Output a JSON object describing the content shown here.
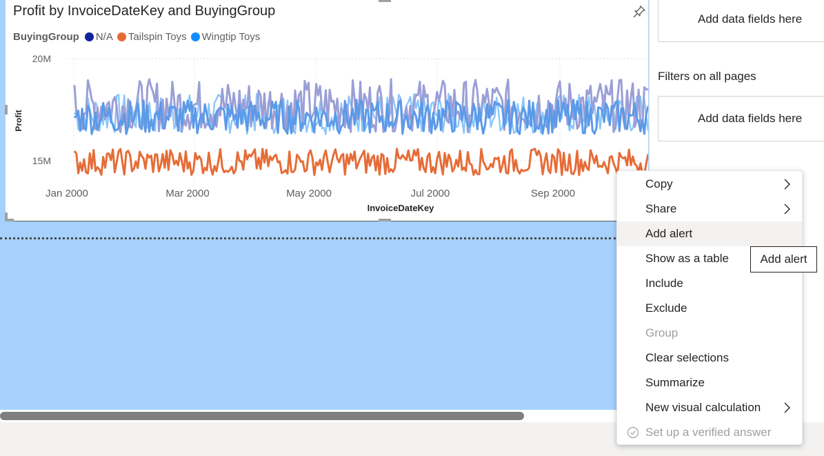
{
  "visual": {
    "title": "Profit by InvoiceDateKey and BuyingGroup",
    "legend_title": "BuyingGroup",
    "pin_icon": "pin-icon"
  },
  "chart_data": {
    "type": "line",
    "title": "Profit by InvoiceDateKey and BuyingGroup",
    "xlabel": "InvoiceDateKey",
    "ylabel": "Profit",
    "x_ticks": [
      "Jan 2000",
      "Mar 2000",
      "May 2000",
      "Jul 2000",
      "Sep 2000"
    ],
    "y_ticks": [
      "15M",
      "20M"
    ],
    "ylim": [
      14000000,
      20000000
    ],
    "xlim": [
      "2000-01-01",
      "2000-10-31"
    ],
    "legend_position": "top-left",
    "grid": true,
    "series": [
      {
        "name": "N/A",
        "color": "#12239e",
        "value_range": [
          16400000,
          19000000
        ]
      },
      {
        "name": "Tailspin Toys",
        "color": "#e66c37",
        "value_range": [
          14300000,
          15600000
        ]
      },
      {
        "name": "Wingtip Toys",
        "color": "#118dff",
        "value_range": [
          16300000,
          18300000
        ]
      }
    ]
  },
  "right_pane": {
    "well_top": "Add data fields here",
    "filters_all_heading": "Filters on all pages",
    "well_all": "Add data fields here"
  },
  "context_menu": {
    "items": [
      {
        "label": "Copy",
        "submenu": true
      },
      {
        "label": "Share",
        "submenu": true
      },
      {
        "label": "Add alert"
      },
      {
        "label": "Show as a table"
      },
      {
        "label": "Include"
      },
      {
        "label": "Exclude"
      },
      {
        "label": "Group",
        "disabled": true
      },
      {
        "label": "Clear selections"
      },
      {
        "label": "Summarize"
      },
      {
        "label": "New visual calculation",
        "submenu": true
      },
      {
        "label": "Set up a verified answer",
        "disabled": true
      }
    ]
  },
  "tooltip": {
    "text": "Add alert"
  },
  "colors": {
    "canvas_selection": "#a6d1fc",
    "na": "#12239e",
    "tailspin": "#e66c37",
    "wingtip": "#118dff"
  }
}
